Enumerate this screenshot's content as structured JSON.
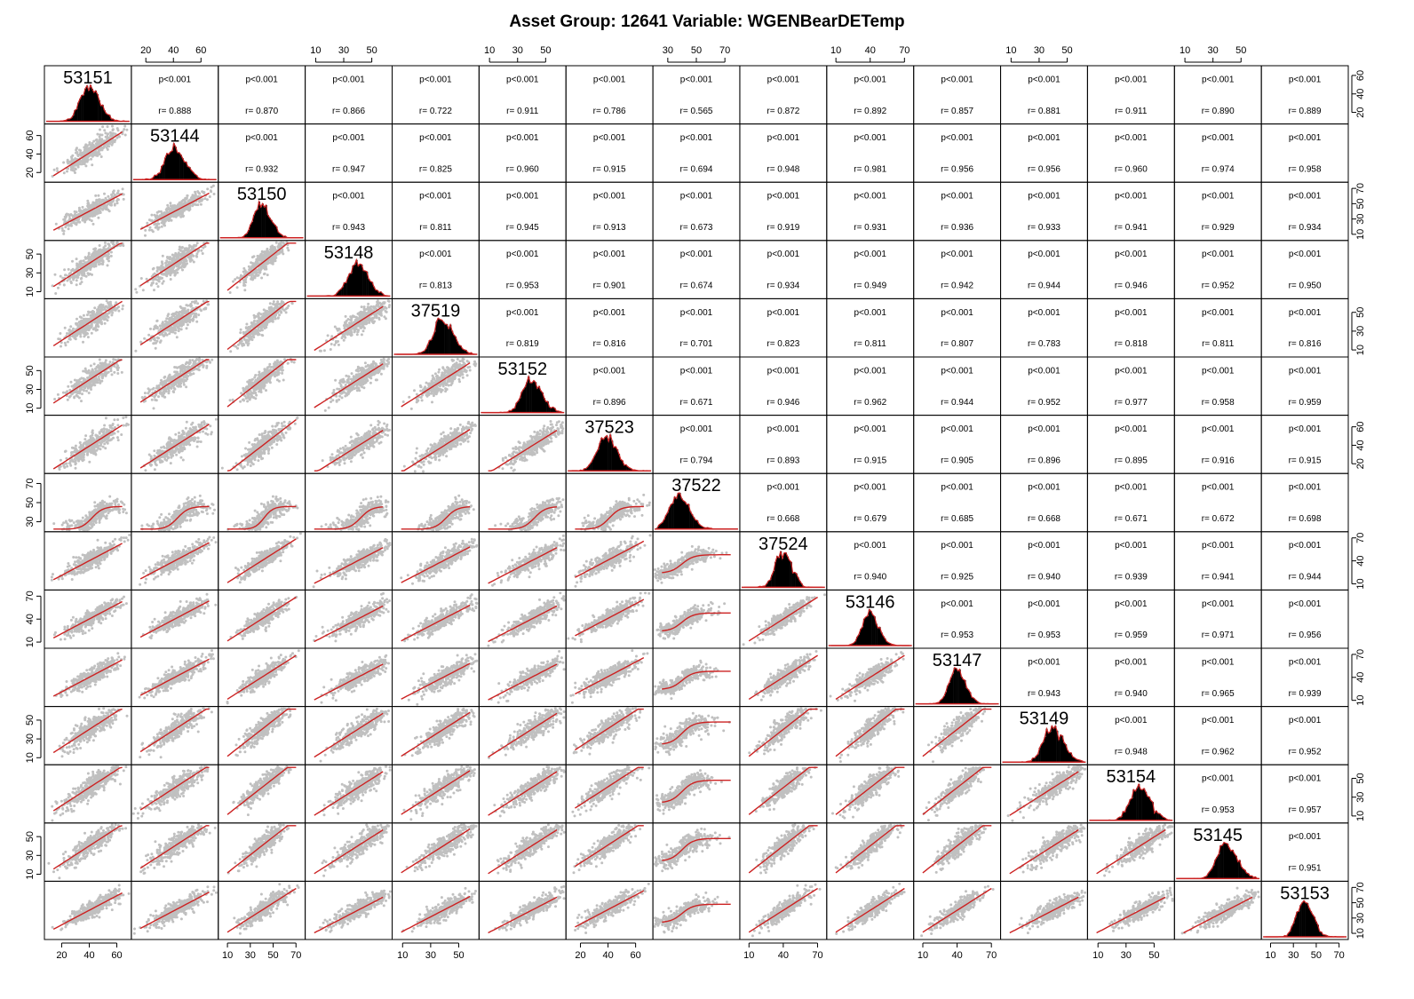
{
  "chart_data": {
    "type": "scatter-matrix",
    "title": "Asset Group: 12641 Variable: WGENBearDETemp",
    "variables": [
      "53151",
      "53144",
      "53150",
      "53148",
      "37519",
      "53152",
      "37523",
      "37522",
      "37524",
      "53146",
      "53147",
      "53149",
      "53154",
      "53145",
      "53153"
    ],
    "centers": [
      42,
      43,
      42,
      42,
      41,
      42,
      41,
      40,
      42,
      42,
      42,
      42,
      42,
      42,
      42
    ],
    "axis_ticks": [
      [
        20,
        40,
        60
      ],
      [
        20,
        40,
        60
      ],
      [
        10,
        30,
        50,
        70
      ],
      [
        10,
        30,
        50
      ],
      [
        10,
        30,
        50
      ],
      [
        10,
        30,
        50
      ],
      [
        20,
        40,
        60
      ],
      [
        30,
        50,
        70
      ],
      [
        10,
        40,
        70
      ],
      [
        10,
        40,
        70
      ],
      [
        10,
        40,
        70
      ],
      [
        10,
        30,
        50
      ],
      [
        10,
        30,
        50
      ],
      [
        10,
        30,
        50
      ],
      [
        10,
        30,
        50,
        70
      ]
    ],
    "axis_ranges": [
      [
        10,
        68
      ],
      [
        12,
        70
      ],
      [
        5,
        75
      ],
      [
        5,
        62
      ],
      [
        5,
        62
      ],
      [
        5,
        62
      ],
      [
        12,
        70
      ],
      [
        22,
        78
      ],
      [
        5,
        75
      ],
      [
        5,
        75
      ],
      [
        5,
        75
      ],
      [
        5,
        62
      ],
      [
        5,
        62
      ],
      [
        5,
        62
      ],
      [
        5,
        75
      ]
    ],
    "p_values": [
      [
        "",
        "p<0.001",
        "p<0.001",
        "p<0.001",
        "p<0.001",
        "p<0.001",
        "p<0.001",
        "p<0.001",
        "p<0.001",
        "p<0.001",
        "p<0.001",
        "p<0.001",
        "p<0.001",
        "p<0.001",
        "p<0.001"
      ],
      [
        "",
        "",
        "p<0.001",
        "p<0.001",
        "p<0.001",
        "p<0.001",
        "p<0.001",
        "p<0.001",
        "p<0.001",
        "p<0.001",
        "p<0.001",
        "p<0.001",
        "p<0.001",
        "p<0.001",
        "p<0.001"
      ],
      [
        "",
        "",
        "",
        "p<0.001",
        "p<0.001",
        "p<0.001",
        "p<0.001",
        "p<0.001",
        "p<0.001",
        "p<0.001",
        "p<0.001",
        "p<0.001",
        "p<0.001",
        "p<0.001",
        "p<0.001"
      ],
      [
        "",
        "",
        "",
        "",
        "p<0.001",
        "p<0.001",
        "p<0.001",
        "p<0.001",
        "p<0.001",
        "p<0.001",
        "p<0.001",
        "p<0.001",
        "p<0.001",
        "p<0.001",
        "p<0.001"
      ],
      [
        "",
        "",
        "",
        "",
        "",
        "p<0.001",
        "p<0.001",
        "p<0.001",
        "p<0.001",
        "p<0.001",
        "p<0.001",
        "p<0.001",
        "p<0.001",
        "p<0.001",
        "p<0.001"
      ],
      [
        "",
        "",
        "",
        "",
        "",
        "",
        "p<0.001",
        "p<0.001",
        "p<0.001",
        "p<0.001",
        "p<0.001",
        "p<0.001",
        "p<0.001",
        "p<0.001",
        "p<0.001"
      ],
      [
        "",
        "",
        "",
        "",
        "",
        "",
        "",
        "p<0.001",
        "p<0.001",
        "p<0.001",
        "p<0.001",
        "p<0.001",
        "p<0.001",
        "p<0.001",
        "p<0.001"
      ],
      [
        "",
        "",
        "",
        "",
        "",
        "",
        "",
        "",
        "p<0.001",
        "p<0.001",
        "p<0.001",
        "p<0.001",
        "p<0.001",
        "p<0.001",
        "p<0.001"
      ],
      [
        "",
        "",
        "",
        "",
        "",
        "",
        "",
        "",
        "",
        "p<0.001",
        "p<0.001",
        "p<0.001",
        "p<0.001",
        "p<0.001",
        "p<0.001"
      ],
      [
        "",
        "",
        "",
        "",
        "",
        "",
        "",
        "",
        "",
        "",
        "p<0.001",
        "p<0.001",
        "p<0.001",
        "p<0.001",
        "p<0.001"
      ],
      [
        "",
        "",
        "",
        "",
        "",
        "",
        "",
        "",
        "",
        "",
        "",
        "p<0.001",
        "p<0.001",
        "p<0.001",
        "p<0.001"
      ],
      [
        "",
        "",
        "",
        "",
        "",
        "",
        "",
        "",
        "",
        "",
        "",
        "",
        "p<0.001",
        "p<0.001",
        "p<0.001"
      ],
      [
        "",
        "",
        "",
        "",
        "",
        "",
        "",
        "",
        "",
        "",
        "",
        "",
        "",
        "p<0.001",
        "p<0.001"
      ],
      [
        "",
        "",
        "",
        "",
        "",
        "",
        "",
        "",
        "",
        "",
        "",
        "",
        "",
        "",
        "p<0.001"
      ],
      [
        "",
        "",
        "",
        "",
        "",
        "",
        "",
        "",
        "",
        "",
        "",
        "",
        "",
        "",
        ""
      ]
    ],
    "r_values": [
      [
        "",
        "r= 0.888",
        "r= 0.870",
        "r= 0.866",
        "r= 0.722",
        "r= 0.911",
        "r= 0.786",
        "r= 0.565",
        "r= 0.872",
        "r= 0.892",
        "r= 0.857",
        "r= 0.881",
        "r= 0.911",
        "r= 0.890",
        "r= 0.889"
      ],
      [
        "",
        "",
        "r= 0.932",
        "r= 0.947",
        "r= 0.825",
        "r= 0.960",
        "r= 0.915",
        "r= 0.694",
        "r= 0.948",
        "r= 0.981",
        "r= 0.956",
        "r= 0.956",
        "r= 0.960",
        "r= 0.974",
        "r= 0.958"
      ],
      [
        "",
        "",
        "",
        "r= 0.943",
        "r= 0.811",
        "r= 0.945",
        "r= 0.913",
        "r= 0.673",
        "r= 0.919",
        "r= 0.931",
        "r= 0.936",
        "r= 0.933",
        "r= 0.941",
        "r= 0.929",
        "r= 0.934"
      ],
      [
        "",
        "",
        "",
        "",
        "r= 0.813",
        "r= 0.953",
        "r= 0.901",
        "r= 0.674",
        "r= 0.934",
        "r= 0.949",
        "r= 0.942",
        "r= 0.944",
        "r= 0.946",
        "r= 0.952",
        "r= 0.950"
      ],
      [
        "",
        "",
        "",
        "",
        "",
        "r= 0.819",
        "r= 0.816",
        "r= 0.701",
        "r= 0.823",
        "r= 0.811",
        "r= 0.807",
        "r= 0.783",
        "r= 0.818",
        "r= 0.811",
        "r= 0.816"
      ],
      [
        "",
        "",
        "",
        "",
        "",
        "",
        "r= 0.896",
        "r= 0.671",
        "r= 0.946",
        "r= 0.962",
        "r= 0.944",
        "r= 0.952",
        "r= 0.977",
        "r= 0.958",
        "r= 0.959"
      ],
      [
        "",
        "",
        "",
        "",
        "",
        "",
        "",
        "r= 0.794",
        "r= 0.893",
        "r= 0.915",
        "r= 0.905",
        "r= 0.896",
        "r= 0.895",
        "r= 0.916",
        "r= 0.915"
      ],
      [
        "",
        "",
        "",
        "",
        "",
        "",
        "",
        "",
        "r= 0.668",
        "r= 0.679",
        "r= 0.685",
        "r= 0.668",
        "r= 0.671",
        "r= 0.672",
        "r= 0.698"
      ],
      [
        "",
        "",
        "",
        "",
        "",
        "",
        "",
        "",
        "",
        "r= 0.940",
        "r= 0.925",
        "r= 0.940",
        "r= 0.939",
        "r= 0.941",
        "r= 0.944"
      ],
      [
        "",
        "",
        "",
        "",
        "",
        "",
        "",
        "",
        "",
        "",
        "r= 0.953",
        "r= 0.953",
        "r= 0.959",
        "r= 0.971",
        "r= 0.956"
      ],
      [
        "",
        "",
        "",
        "",
        "",
        "",
        "",
        "",
        "",
        "",
        "",
        "r= 0.943",
        "r= 0.940",
        "r= 0.965",
        "r= 0.939"
      ],
      [
        "",
        "",
        "",
        "",
        "",
        "",
        "",
        "",
        "",
        "",
        "",
        "",
        "r= 0.948",
        "r= 0.962",
        "r= 0.952"
      ],
      [
        "",
        "",
        "",
        "",
        "",
        "",
        "",
        "",
        "",
        "",
        "",
        "",
        "",
        "r= 0.953",
        "r= 0.957"
      ],
      [
        "",
        "",
        "",
        "",
        "",
        "",
        "",
        "",
        "",
        "",
        "",
        "",
        "",
        "",
        "r= 0.951"
      ],
      [
        "",
        "",
        "",
        "",
        "",
        "",
        "",
        "",
        "",
        "",
        "",
        "",
        "",
        "",
        ""
      ]
    ],
    "colors": {
      "points": "#c0c0c0",
      "smooth": "#cc2222",
      "histogram": "#000000",
      "density": "#cc2222",
      "frame": "#000000"
    }
  }
}
